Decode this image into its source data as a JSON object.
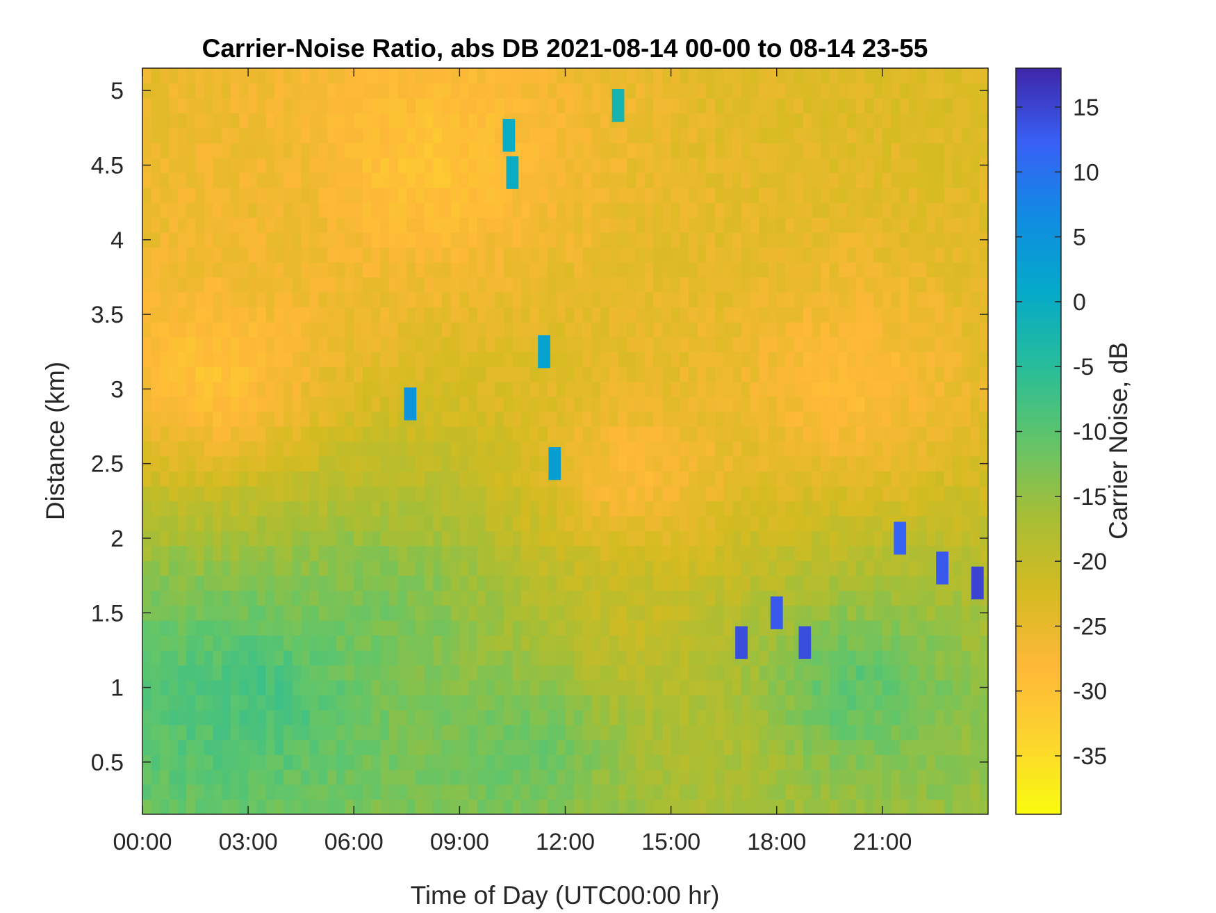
{
  "chart_data": {
    "type": "heatmap",
    "title": "Carrier-Noise Ratio, abs DB 2021-08-14 00-00 to 08-14 23-55",
    "xlabel": "Time of Day (UTC00:00 hr)",
    "ylabel": "Distance (km)",
    "colorbar_label": "Carrier Noise, dB",
    "x_range_hours": [
      0,
      24
    ],
    "y_range_km": [
      0.15,
      5.15
    ],
    "color_range_db": [
      -39.5,
      18
    ],
    "x_ticks": [
      {
        "value": 0,
        "label": "00:00"
      },
      {
        "value": 3,
        "label": "03:00"
      },
      {
        "value": 6,
        "label": "06:00"
      },
      {
        "value": 9,
        "label": "09:00"
      },
      {
        "value": 12,
        "label": "12:00"
      },
      {
        "value": 15,
        "label": "15:00"
      },
      {
        "value": 18,
        "label": "18:00"
      },
      {
        "value": 21,
        "label": "21:00"
      }
    ],
    "y_ticks": [
      {
        "value": 0.5,
        "label": "0.5"
      },
      {
        "value": 1,
        "label": "1"
      },
      {
        "value": 1.5,
        "label": "1.5"
      },
      {
        "value": 2,
        "label": "2"
      },
      {
        "value": 2.5,
        "label": "2.5"
      },
      {
        "value": 3,
        "label": "3"
      },
      {
        "value": 3.5,
        "label": "3.5"
      },
      {
        "value": 4,
        "label": "4"
      },
      {
        "value": 4.5,
        "label": "4.5"
      },
      {
        "value": 5,
        "label": "5"
      }
    ],
    "colorbar_ticks": [
      {
        "value": 15,
        "label": "15"
      },
      {
        "value": 10,
        "label": "10"
      },
      {
        "value": 5,
        "label": "5"
      },
      {
        "value": 0,
        "label": "0"
      },
      {
        "value": -5,
        "label": "-5"
      },
      {
        "value": -10,
        "label": "-10"
      },
      {
        "value": -15,
        "label": "-15"
      },
      {
        "value": -20,
        "label": "-20"
      },
      {
        "value": -25,
        "label": "-25"
      },
      {
        "value": -30,
        "label": "-30"
      },
      {
        "value": -35,
        "label": "-35"
      }
    ],
    "colormap": "parula",
    "grid": false,
    "field_description_points": [
      {
        "time_h": 1.0,
        "distance_km": 0.9,
        "db": -9
      },
      {
        "time_h": 3.5,
        "distance_km": 0.95,
        "db": -7
      },
      {
        "time_h": 7.0,
        "distance_km": 1.5,
        "db": -12
      },
      {
        "time_h": 11.0,
        "distance_km": 0.6,
        "db": -10
      },
      {
        "time_h": 14.0,
        "distance_km": 1.4,
        "db": -21
      },
      {
        "time_h": 16.0,
        "distance_km": 0.6,
        "db": -18
      },
      {
        "time_h": 20.0,
        "distance_km": 1.0,
        "db": -9
      },
      {
        "time_h": 2.0,
        "distance_km": 3.1,
        "db": -31
      },
      {
        "time_h": 3.0,
        "distance_km": 4.2,
        "db": -26
      },
      {
        "time_h": 8.0,
        "distance_km": 4.5,
        "db": -31
      },
      {
        "time_h": 14.0,
        "distance_km": 2.4,
        "db": -29
      },
      {
        "time_h": 20.0,
        "distance_km": 3.0,
        "db": -29
      }
    ],
    "strong_echo_features": [
      {
        "time_h": 10.4,
        "distance_km": 4.7,
        "db": 0
      },
      {
        "time_h": 10.5,
        "distance_km": 4.45,
        "db": 0
      },
      {
        "time_h": 11.4,
        "distance_km": 3.25,
        "db": 2
      },
      {
        "time_h": 11.7,
        "distance_km": 2.5,
        "db": 3
      },
      {
        "time_h": 7.6,
        "distance_km": 2.9,
        "db": 5
      },
      {
        "time_h": 13.5,
        "distance_km": 4.9,
        "db": -2
      },
      {
        "time_h": 17.0,
        "distance_km": 1.3,
        "db": 14
      },
      {
        "time_h": 18.0,
        "distance_km": 1.5,
        "db": 13
      },
      {
        "time_h": 18.8,
        "distance_km": 1.3,
        "db": 14
      },
      {
        "time_h": 21.5,
        "distance_km": 2.0,
        "db": 12
      },
      {
        "time_h": 22.7,
        "distance_km": 1.8,
        "db": 13
      },
      {
        "time_h": 23.7,
        "distance_km": 1.7,
        "db": 15
      }
    ]
  }
}
